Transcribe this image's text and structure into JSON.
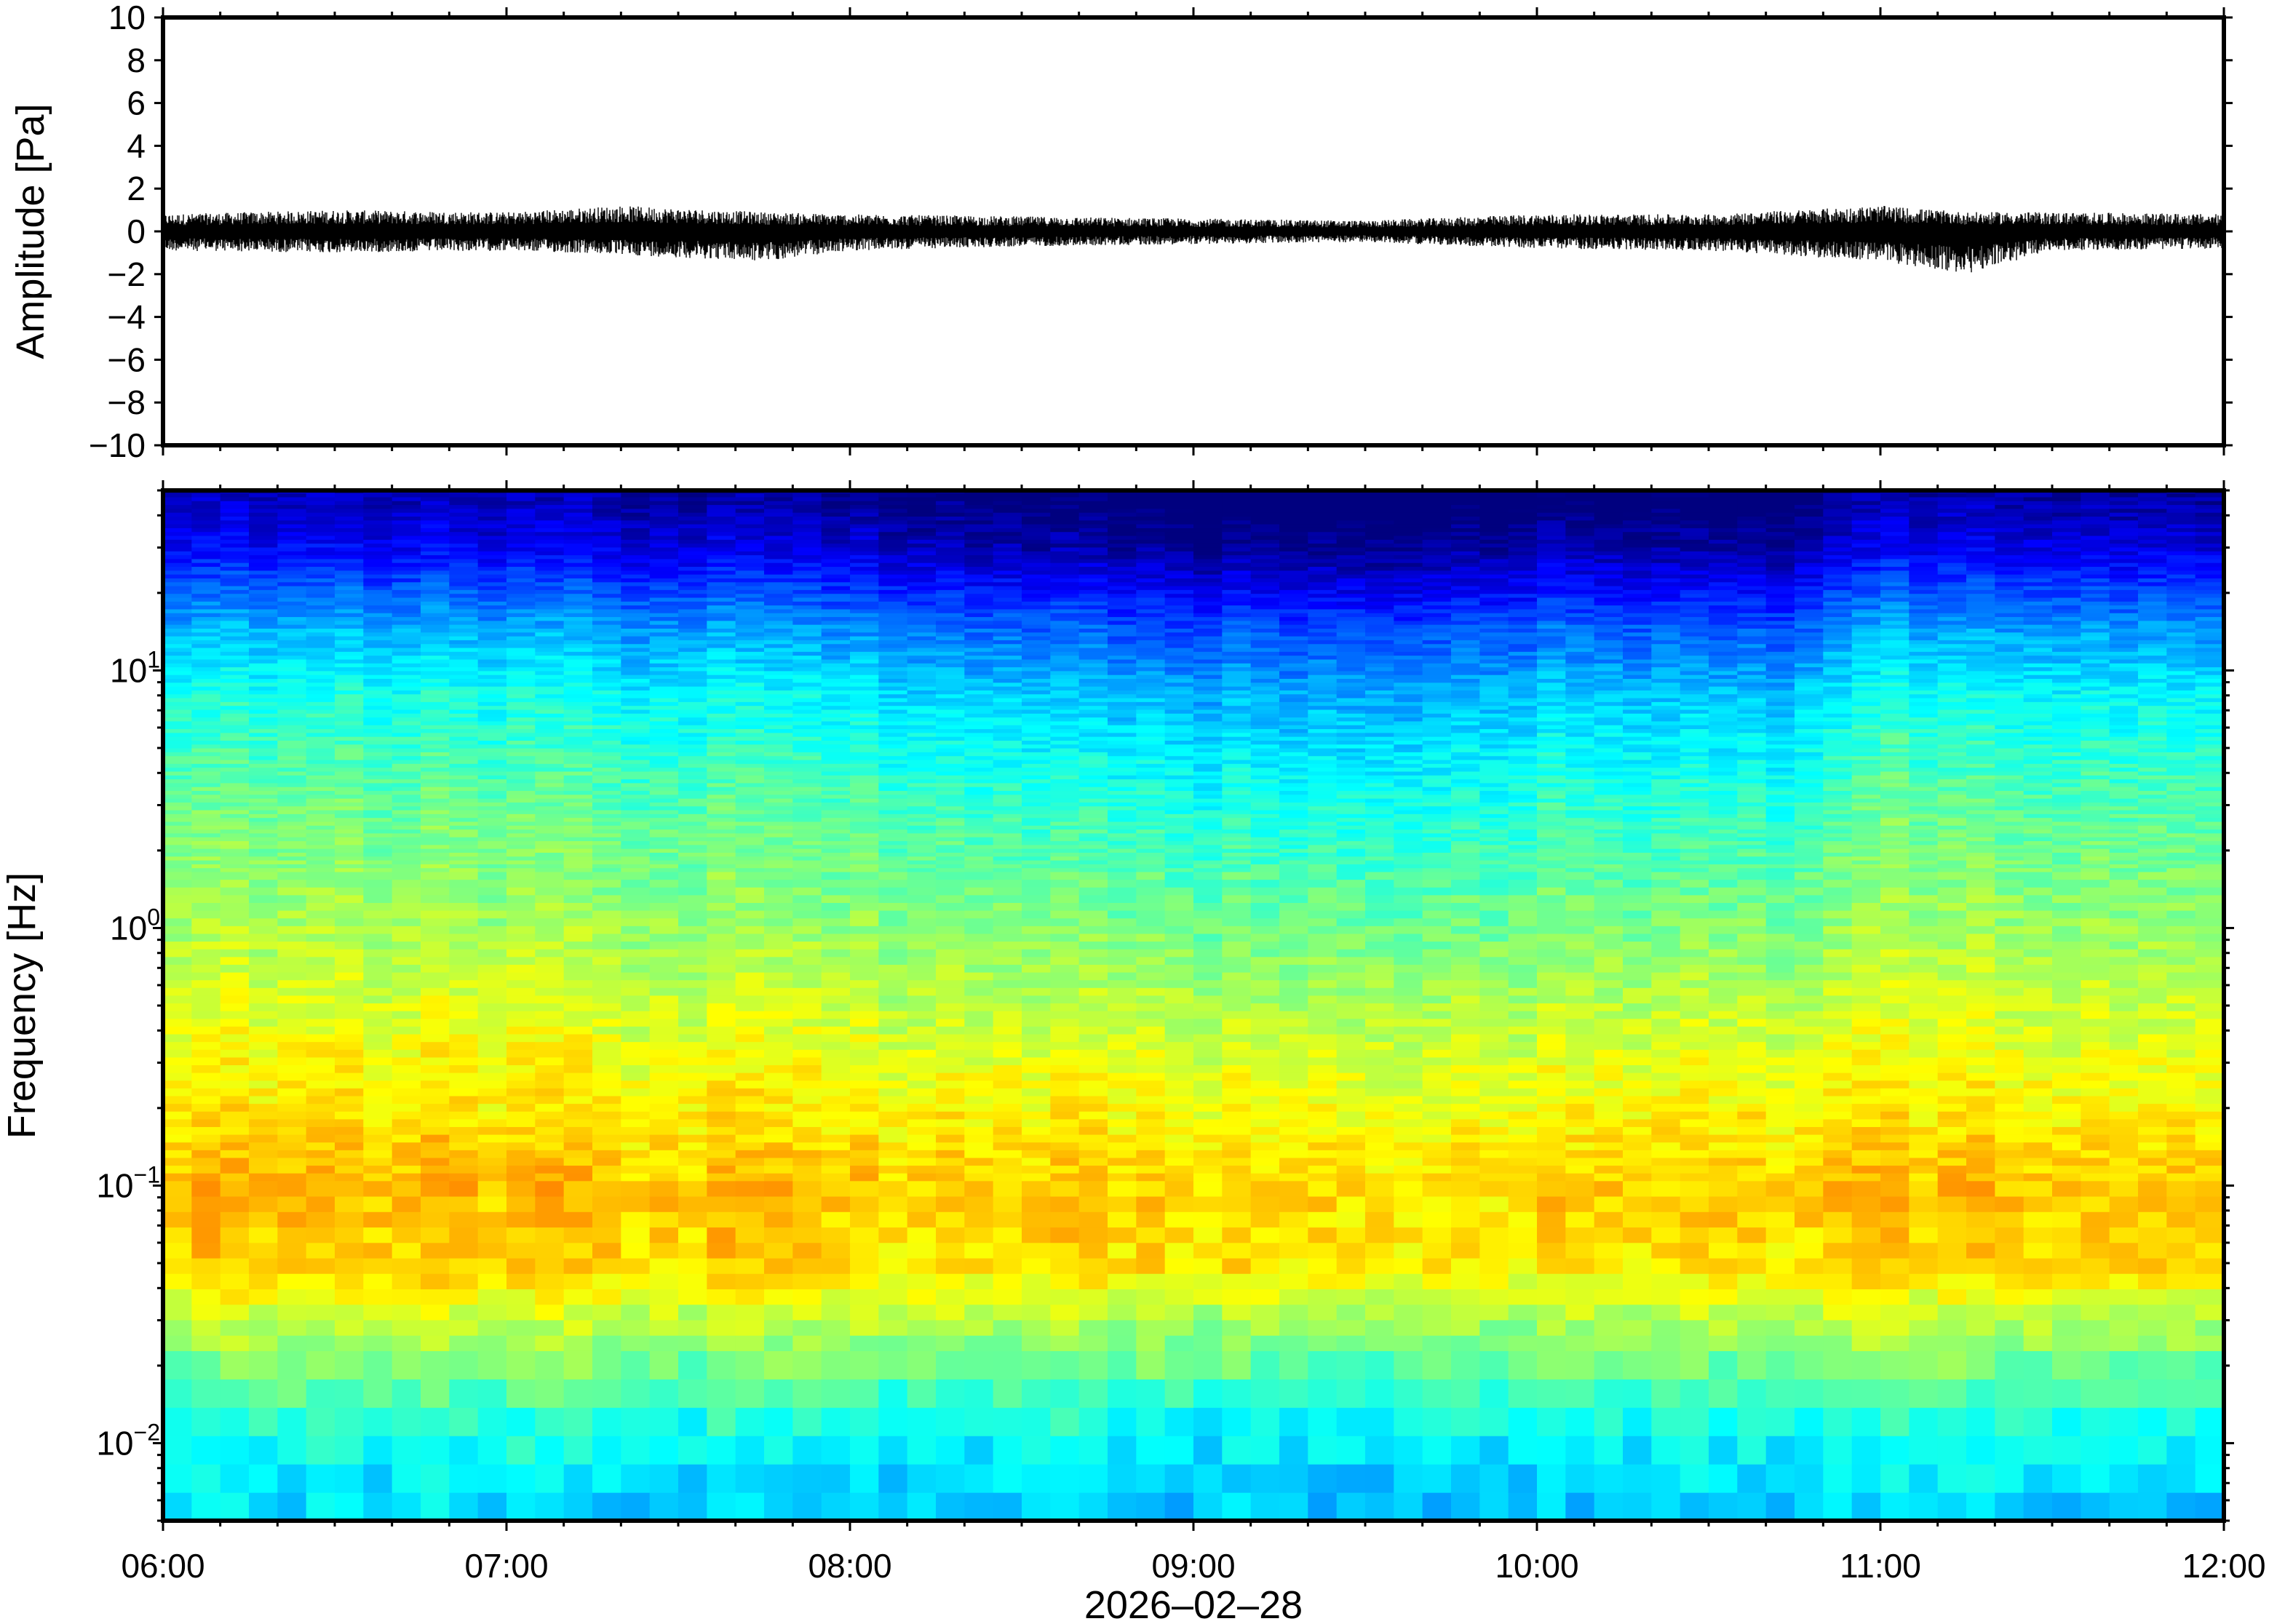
{
  "chart_data": [
    {
      "type": "line",
      "ylabel": "Amplitude [Pa]",
      "ylim": [
        -10,
        10
      ],
      "yticks": [
        "10",
        "8",
        "6",
        "4",
        "2",
        "0",
        "−2",
        "−4",
        "−6",
        "−8",
        "−10"
      ],
      "xlim": [
        "06:00",
        "12:00"
      ],
      "series": [
        {
          "x_start": "06:00",
          "x_end": "12:00",
          "color": "#000000",
          "mean": 0,
          "envelope": [
            {
              "time": "06:00",
              "min": -0.9,
              "max": 0.8
            },
            {
              "time": "06:30",
              "min": -1.0,
              "max": 1.0
            },
            {
              "time": "07:00",
              "min": -0.9,
              "max": 0.9
            },
            {
              "time": "07:20",
              "min": -1.1,
              "max": 1.2
            },
            {
              "time": "07:45",
              "min": -1.4,
              "max": 0.9
            },
            {
              "time": "08:00",
              "min": -0.9,
              "max": 0.8
            },
            {
              "time": "08:30",
              "min": -0.7,
              "max": 0.7
            },
            {
              "time": "09:00",
              "min": -0.6,
              "max": 0.6
            },
            {
              "time": "09:30",
              "min": -0.5,
              "max": 0.5
            },
            {
              "time": "10:00",
              "min": -0.8,
              "max": 0.8
            },
            {
              "time": "10:30",
              "min": -0.9,
              "max": 0.8
            },
            {
              "time": "11:00",
              "min": -1.4,
              "max": 1.2
            },
            {
              "time": "11:15",
              "min": -2.0,
              "max": 0.9
            },
            {
              "time": "11:30",
              "min": -0.9,
              "max": 0.9
            },
            {
              "time": "12:00",
              "min": -0.8,
              "max": 0.8
            }
          ]
        }
      ],
      "grid": false
    },
    {
      "type": "heatmap",
      "ylabel": "Frequency [Hz]",
      "xlabel": "2026–02–28",
      "y_scale": "log",
      "ylim": [
        0.005,
        50
      ],
      "yticks": [
        {
          "value": 10,
          "base": "10",
          "exp": "1"
        },
        {
          "value": 1,
          "base": "10",
          "exp": "0"
        },
        {
          "value": 0.1,
          "base": "10",
          "exp": "−1"
        },
        {
          "value": 0.01,
          "base": "10",
          "exp": "−2"
        }
      ],
      "xlim": [
        "06:00",
        "12:00"
      ],
      "xticks": [
        "06:00",
        "07:00",
        "08:00",
        "09:00",
        "10:00",
        "11:00",
        "12:00"
      ],
      "colormap": "jet",
      "colorscale": [
        "#00007f",
        "#0000ff",
        "#007fff",
        "#00ffff",
        "#7fff7f",
        "#ffff00",
        "#ff7f00",
        "#ff0000"
      ],
      "grid": false,
      "columns": 72,
      "power_profile_by_frequency": [
        {
          "freq": 50,
          "level": 0.02
        },
        {
          "freq": 30,
          "level": 0.1
        },
        {
          "freq": 15,
          "level": 0.3
        },
        {
          "freq": 8,
          "level": 0.42
        },
        {
          "freq": 3,
          "level": 0.52
        },
        {
          "freq": 1,
          "level": 0.6
        },
        {
          "freq": 0.3,
          "level": 0.7
        },
        {
          "freq": 0.1,
          "level": 0.78
        },
        {
          "freq": 0.05,
          "level": 0.76
        },
        {
          "freq": 0.025,
          "level": 0.6
        },
        {
          "freq": 0.012,
          "level": 0.46
        },
        {
          "freq": 0.006,
          "level": 0.38
        }
      ],
      "time_modulation": [
        {
          "time": "06:00",
          "offset": 0.03
        },
        {
          "time": "07:00",
          "offset": 0.02
        },
        {
          "time": "08:00",
          "offset": 0.0
        },
        {
          "time": "08:30",
          "offset": -0.04
        },
        {
          "time": "09:00",
          "offset": -0.06
        },
        {
          "time": "09:30",
          "offset": -0.06
        },
        {
          "time": "10:00",
          "offset": -0.03
        },
        {
          "time": "10:40",
          "offset": -0.06
        },
        {
          "time": "11:00",
          "offset": 0.02
        },
        {
          "time": "12:00",
          "offset": 0.01
        }
      ]
    }
  ]
}
